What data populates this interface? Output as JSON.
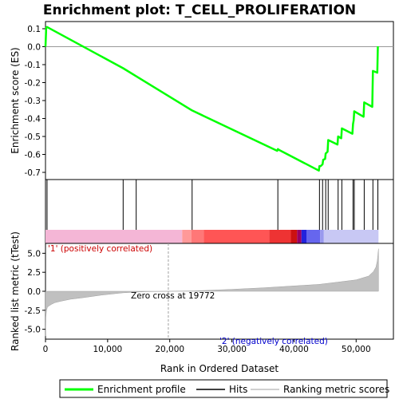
{
  "chart_data": {
    "type": "line",
    "title": "Enrichment plot: T_CELL_PROLIFERATION",
    "xlabel": "Rank in Ordered Dataset",
    "xlim": [
      0,
      56000
    ],
    "x_ticks": [
      0,
      10000,
      20000,
      30000,
      40000,
      50000
    ],
    "x_tick_labels": [
      "0",
      "10,000",
      "20,000",
      "30,000",
      "40,000",
      "50,000"
    ],
    "es_panel": {
      "ylabel": "Enrichment score (ES)",
      "ylim": [
        -0.74,
        0.14
      ],
      "y_ticks": [
        0.1,
        0.0,
        -0.1,
        -0.2,
        -0.3,
        -0.4,
        -0.5,
        -0.6,
        -0.7
      ],
      "y_tick_labels": [
        "0.1",
        "0.0",
        "-0.1",
        "-0.2",
        "-0.3",
        "-0.4",
        "-0.5",
        "-0.6",
        "-0.7"
      ],
      "zero_line": true
    },
    "series": [
      {
        "name": "Enrichment profile",
        "color": "#00ff00",
        "x": [
          0,
          120,
          250,
          12500,
          14600,
          23600,
          37300,
          37400,
          37600,
          44000,
          44100,
          44300,
          44600,
          44700,
          45000,
          45100,
          45400,
          45500,
          47000,
          47100,
          47600,
          47700,
          49400,
          49500,
          49600,
          49700,
          51200,
          51300,
          52600,
          52700,
          53400,
          53500
        ],
        "y": [
          0.0,
          0.105,
          0.11,
          -0.12,
          -0.165,
          -0.355,
          -0.58,
          -0.57,
          -0.575,
          -0.69,
          -0.665,
          -0.665,
          -0.655,
          -0.63,
          -0.625,
          -0.595,
          -0.585,
          -0.52,
          -0.545,
          -0.5,
          -0.51,
          -0.455,
          -0.485,
          -0.43,
          -0.41,
          -0.36,
          -0.39,
          -0.31,
          -0.335,
          -0.135,
          -0.145,
          0.002
        ]
      }
    ],
    "hits": {
      "name": "Hits",
      "x": [
        250,
        12500,
        14600,
        23600,
        37400,
        44100,
        44600,
        45100,
        45500,
        47100,
        47700,
        49500,
        49700,
        51300,
        52700,
        53500
      ]
    },
    "correlation_bar": {
      "segments": [
        {
          "from": 0,
          "to": 22000,
          "color": "#f4b6d6"
        },
        {
          "from": 22000,
          "to": 23500,
          "color": "#ff9999"
        },
        {
          "from": 23500,
          "to": 25500,
          "color": "#ff7777"
        },
        {
          "from": 25500,
          "to": 36000,
          "color": "#ff5555"
        },
        {
          "from": 36000,
          "to": 39500,
          "color": "#ee3333"
        },
        {
          "from": 39500,
          "to": 40500,
          "color": "#cc1111"
        },
        {
          "from": 40500,
          "to": 41200,
          "color": "#990066"
        },
        {
          "from": 41200,
          "to": 42000,
          "color": "#2222dd"
        },
        {
          "from": 42000,
          "to": 44200,
          "color": "#6666ee"
        },
        {
          "from": 44200,
          "to": 44800,
          "color": "#9999ee"
        },
        {
          "from": 44800,
          "to": 53600,
          "color": "#c8c8f4"
        }
      ]
    },
    "metric_panel": {
      "ylabel": "Ranked list metric (tTest)",
      "ylim": [
        -6.3,
        6.3
      ],
      "y_ticks": [
        5.0,
        2.5,
        0.0,
        -2.5,
        -5.0
      ],
      "y_tick_labels": [
        "5.0",
        "2.5",
        "0.0",
        "-2.5",
        "-5.0"
      ],
      "series_name": "Ranking metric scores",
      "color": "#c0c0c0",
      "x": [
        0,
        60,
        150,
        300,
        600,
        1000,
        1500,
        2500,
        4000,
        6000,
        9000,
        12500,
        16000,
        19772,
        24000,
        30000,
        35000,
        40000,
        44000,
        47000,
        50000,
        52000,
        52800,
        53200,
        53400,
        53600
      ],
      "y": [
        -5.9,
        -3.4,
        -2.6,
        -2.1,
        -1.9,
        -1.7,
        -1.5,
        -1.3,
        -1.05,
        -0.85,
        -0.5,
        -0.2,
        -0.05,
        0.0,
        0.05,
        0.25,
        0.45,
        0.7,
        0.9,
        1.2,
        1.5,
        2.0,
        2.6,
        3.2,
        4.0,
        5.6
      ],
      "zero_cross_x": 19772,
      "zero_cross_label": "Zero cross at 19772",
      "pos_label": "'1' (positively correlated)",
      "neg_label": "'2' (negatively correlated)"
    },
    "legend": {
      "placement": "bottom",
      "items": [
        {
          "label": "Enrichment profile",
          "color": "#00ff00"
        },
        {
          "label": "Hits",
          "color": "#000000"
        },
        {
          "label": "Ranking metric scores",
          "color": "#c0c0c0"
        }
      ]
    }
  }
}
